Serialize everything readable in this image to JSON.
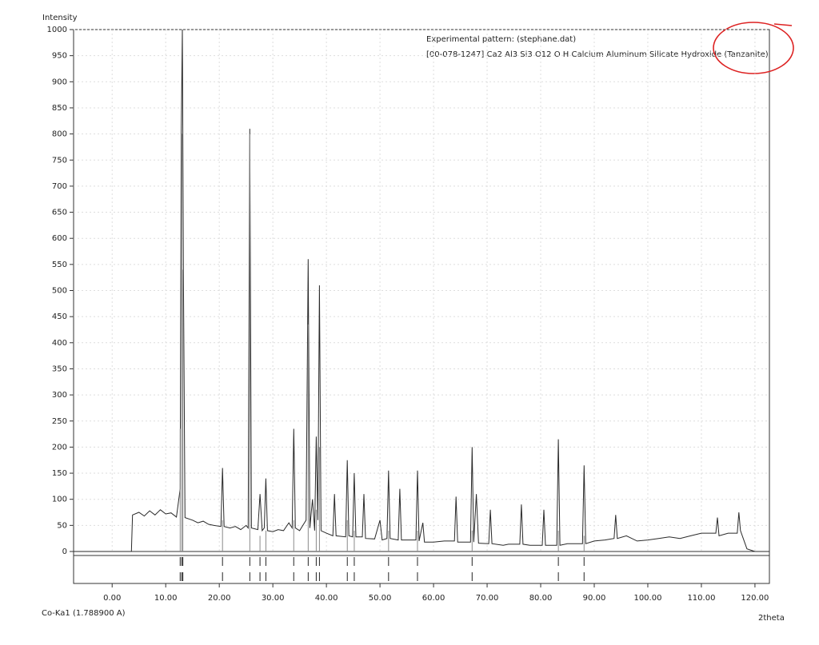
{
  "chart_data": {
    "type": "line",
    "y_label": "Intensity",
    "x_label": "2theta",
    "wavelength_label": "Co-Ka1 (1.788900 A)",
    "xlim": [
      -7.2,
      122.7
    ],
    "ylim": [
      0,
      1000
    ],
    "xticks": [
      {
        "value": 0,
        "label": "0.00"
      },
      {
        "value": 10,
        "label": "10.00"
      },
      {
        "value": 20,
        "label": "20.00"
      },
      {
        "value": 30,
        "label": "30.00"
      },
      {
        "value": 40,
        "label": "40.00"
      },
      {
        "value": 50,
        "label": "50.00"
      },
      {
        "value": 60,
        "label": "60.00"
      },
      {
        "value": 70,
        "label": "70.00"
      },
      {
        "value": 80,
        "label": "80.00"
      },
      {
        "value": 90,
        "label": "90.00"
      },
      {
        "value": 100,
        "label": "100.00"
      },
      {
        "value": 110,
        "label": "110.00"
      },
      {
        "value": 120,
        "label": "120.00"
      }
    ],
    "yticks": [
      0,
      50,
      100,
      150,
      200,
      250,
      300,
      350,
      400,
      450,
      500,
      550,
      600,
      650,
      700,
      750,
      800,
      850,
      900,
      950,
      1000
    ],
    "grid": true,
    "series": [
      {
        "name": "Experimental pattern: (stephane.dat)",
        "color": "#2a2a2a",
        "x": [
          -7.2,
          3.6,
          3.8,
          5,
          6,
          7,
          8,
          9,
          10,
          11,
          12,
          12.7,
          12.9,
          13.1,
          13.3,
          13.6,
          15,
          16,
          17,
          18,
          19,
          20.3,
          20.6,
          20.9,
          22,
          23,
          24,
          25,
          25.4,
          25.7,
          26,
          27.2,
          27.6,
          28,
          28.4,
          28.7,
          29,
          30,
          31,
          32,
          33,
          33.6,
          33.9,
          34.2,
          35,
          36.2,
          36.6,
          36.9,
          37.4,
          37.8,
          38.1,
          38.4,
          38.7,
          39,
          40,
          41.2,
          41.5,
          41.8,
          43.6,
          43.9,
          44.2,
          44.9,
          45.2,
          45.5,
          46.7,
          47,
          47.3,
          49,
          50,
          50.4,
          51.3,
          51.6,
          51.9,
          53.4,
          53.7,
          54,
          56.7,
          57,
          57.3,
          58,
          58.3,
          60,
          62,
          63.9,
          64.2,
          64.5,
          66.9,
          67.2,
          67.5,
          68,
          68.4,
          70.3,
          70.6,
          70.9,
          73,
          74,
          76.1,
          76.4,
          76.7,
          78,
          80.3,
          80.6,
          80.9,
          83,
          83.3,
          83.6,
          85,
          87.8,
          88.1,
          88.4,
          90,
          92,
          93.7,
          94,
          94.3,
          96,
          98,
          100,
          102,
          104,
          106,
          108,
          110,
          112.7,
          113,
          113.3,
          115,
          116.7,
          117,
          117.3,
          118.5,
          120,
          122.7
        ],
        "values": [
          0,
          0,
          70,
          75,
          68,
          78,
          70,
          80,
          72,
          74,
          66,
          120,
          800,
          1000,
          540,
          65,
          60,
          55,
          58,
          52,
          50,
          48,
          160,
          48,
          45,
          48,
          42,
          50,
          45,
          810,
          45,
          42,
          110,
          40,
          45,
          140,
          40,
          38,
          42,
          40,
          55,
          45,
          235,
          45,
          40,
          60,
          560,
          45,
          100,
          40,
          220,
          60,
          510,
          40,
          35,
          30,
          110,
          30,
          28,
          175,
          30,
          28,
          150,
          28,
          28,
          110,
          25,
          24,
          60,
          22,
          25,
          155,
          25,
          22,
          120,
          22,
          22,
          155,
          20,
          55,
          18,
          18,
          20,
          20,
          105,
          18,
          18,
          200,
          18,
          110,
          16,
          15,
          80,
          15,
          12,
          14,
          14,
          90,
          14,
          12,
          12,
          80,
          12,
          12,
          215,
          12,
          15,
          15,
          165,
          15,
          20,
          22,
          25,
          70,
          25,
          30,
          20,
          22,
          25,
          28,
          25,
          30,
          35,
          35,
          65,
          30,
          35,
          35,
          75,
          40,
          5,
          0,
          0
        ]
      },
      {
        "name": "[00-078-1247] Ca2 Al3 Si3 O12 O H Calcium Aluminum Silicate Hydroxide (Tanzanite)",
        "color": "#8a8a8a",
        "mark": "stick",
        "x": [
          12.7,
          13.0,
          13.2,
          20.6,
          25.7,
          27.6,
          28.7,
          33.9,
          36.6,
          38.1,
          38.7,
          43.9,
          45.2,
          51.6,
          57,
          67.2,
          83.3,
          88.1
        ],
        "values": [
          235,
          800,
          540,
          60,
          800,
          30,
          40,
          60,
          435,
          80,
          200,
          60,
          40,
          40,
          40,
          40,
          40,
          30
        ]
      }
    ]
  }
}
